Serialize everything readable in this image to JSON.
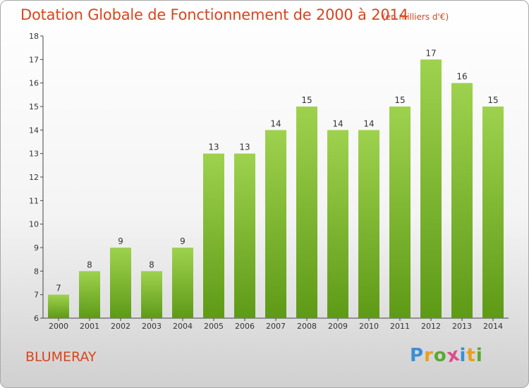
{
  "header": {
    "title": "Dotation Globale de Fonctionnement de 2000 à 2014",
    "unit": "(en milliers d'€)"
  },
  "footer": {
    "place": "BLUMERAY",
    "logo_letters": [
      "P",
      "r",
      "o",
      "x",
      "i",
      "t",
      "i"
    ],
    "logo_colors": [
      "#3a8fd6",
      "#e8a020",
      "#5aa832",
      "#e04a8c",
      "#3a8fd6",
      "#e8a020",
      "#5aa832"
    ]
  },
  "colors": {
    "bar_top": "#9ed24e",
    "bar_bottom": "#5e9a16",
    "axis": "#444444",
    "text": "#333333",
    "accent": "#d9451e"
  },
  "chart_data": {
    "type": "bar",
    "categories": [
      "2000",
      "2001",
      "2002",
      "2003",
      "2004",
      "2005",
      "2006",
      "2007",
      "2008",
      "2009",
      "2010",
      "2011",
      "2012",
      "2013",
      "2014"
    ],
    "values": [
      7,
      8,
      9,
      8,
      9,
      13,
      13,
      14,
      15,
      14,
      14,
      15,
      17,
      16,
      15
    ],
    "title": "Dotation Globale de Fonctionnement de 2000 à 2014",
    "ylim": [
      6,
      18
    ],
    "yticks": [
      6,
      7,
      8,
      9,
      10,
      11,
      12,
      13,
      14,
      15,
      16,
      17,
      18
    ],
    "grid": false,
    "data_labels": true
  }
}
